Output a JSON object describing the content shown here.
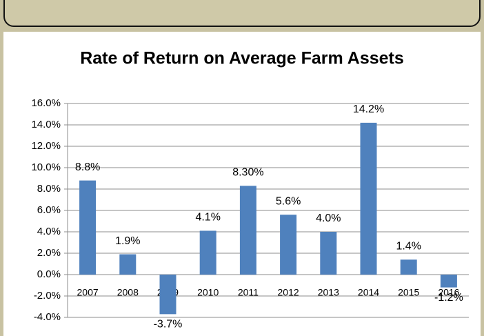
{
  "chart_data": {
    "type": "bar",
    "title": "Rate of Return on Average Farm Assets",
    "categories": [
      "2007",
      "2008",
      "2009",
      "2010",
      "2011",
      "2012",
      "2013",
      "2014",
      "2015",
      "2016"
    ],
    "values": [
      8.8,
      1.9,
      -3.7,
      4.1,
      8.3,
      5.6,
      4.0,
      14.2,
      1.4,
      -1.2
    ],
    "value_labels": [
      "8.8%",
      "1.9%",
      "-3.7%",
      "4.1%",
      "8.30%",
      "5.6%",
      "4.0%",
      "14.2%",
      "1.4%",
      "-1.2%"
    ],
    "color": "#4f81bd",
    "ylim": [
      -4,
      16
    ],
    "yticks": [
      {
        "value": -4,
        "label": "-4.0%"
      },
      {
        "value": -2,
        "label": "-2.0%"
      },
      {
        "value": 0,
        "label": "0.0%"
      },
      {
        "value": 2,
        "label": "2.0%"
      },
      {
        "value": 4,
        "label": "4.0%"
      },
      {
        "value": 6,
        "label": "6.0%"
      },
      {
        "value": 8,
        "label": "8.0%"
      },
      {
        "value": 10,
        "label": "10.0%"
      },
      {
        "value": 12,
        "label": "12.0%"
      },
      {
        "value": 14,
        "label": "14.0%"
      },
      {
        "value": 16,
        "label": "16.0%"
      }
    ],
    "grid": true
  }
}
